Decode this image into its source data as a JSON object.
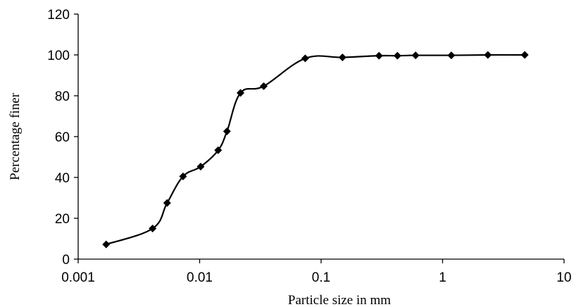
{
  "chart_data": {
    "type": "scatter",
    "title": "",
    "xlabel": "Particle size in mm",
    "ylabel": "Percentage finer",
    "x_scale": "log",
    "xlim": [
      0.001,
      10
    ],
    "ylim": [
      0,
      120
    ],
    "x_ticks": [
      "0.001",
      "0.01",
      "0.1",
      "1",
      "10"
    ],
    "y_ticks": [
      "0",
      "20",
      "40",
      "60",
      "80",
      "100",
      "120"
    ],
    "grid": false,
    "legend": "none",
    "marker": "diamond",
    "line": "smooth",
    "color": "#000000",
    "series": [
      {
        "x": [
          0.0017,
          0.0041,
          0.0054,
          0.0073,
          0.0102,
          0.0142,
          0.0168,
          0.0217,
          0.0337,
          0.074,
          0.15,
          0.3,
          0.425,
          0.6,
          1.18,
          2.36,
          4.75
        ],
        "y": [
          7.2,
          15,
          27.5,
          40.5,
          45.3,
          53.3,
          62.6,
          81.4,
          84.7,
          98.3,
          98.8,
          99.6,
          99.6,
          99.8,
          99.8,
          100,
          100
        ]
      }
    ]
  }
}
